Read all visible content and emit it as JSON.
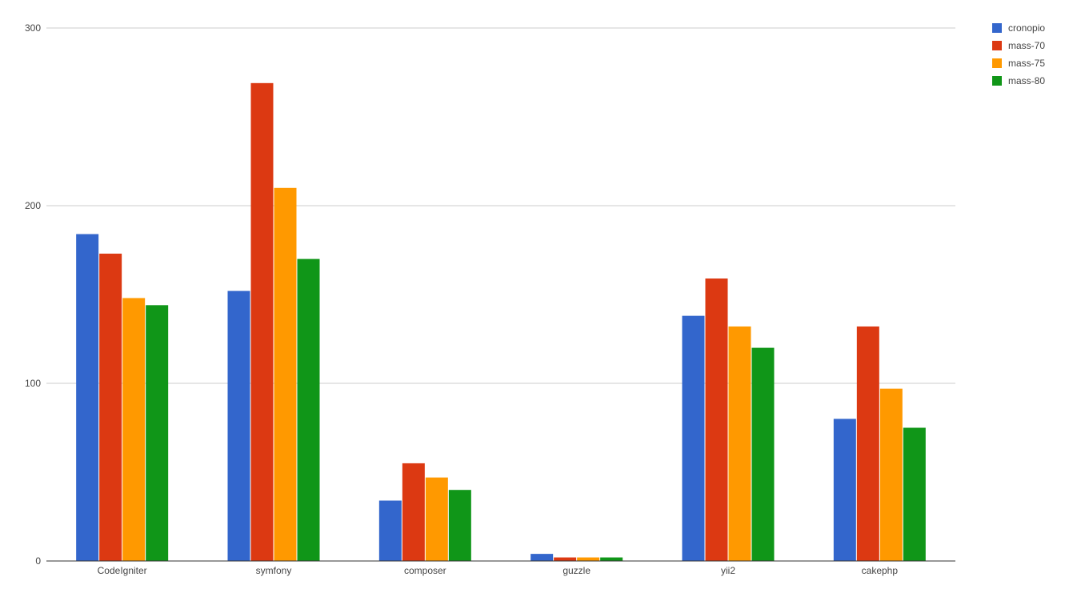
{
  "chart_data": {
    "type": "bar",
    "title": "",
    "xlabel": "",
    "ylabel": "",
    "ylim": [
      0,
      300
    ],
    "yticks": [
      0,
      100,
      200,
      300
    ],
    "grid": true,
    "legend_position": "top-right",
    "categories": [
      "CodeIgniter",
      "symfony",
      "composer",
      "guzzle",
      "yii2",
      "cakephp"
    ],
    "series": [
      {
        "name": "cronopio",
        "color": "#3366cc",
        "values": [
          184,
          152,
          34,
          4,
          138,
          80
        ]
      },
      {
        "name": "mass-70",
        "color": "#dc3912",
        "values": [
          173,
          269,
          55,
          2,
          159,
          132
        ]
      },
      {
        "name": "mass-75",
        "color": "#ff9900",
        "values": [
          148,
          210,
          47,
          2,
          132,
          97
        ]
      },
      {
        "name": "mass-80",
        "color": "#109618",
        "values": [
          144,
          170,
          40,
          2,
          120,
          75
        ]
      }
    ]
  }
}
